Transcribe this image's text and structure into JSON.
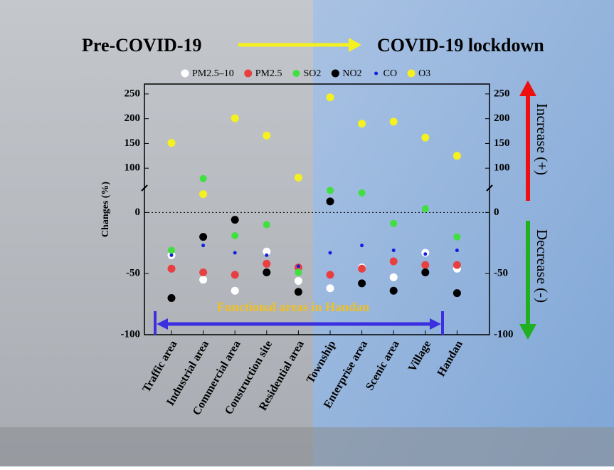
{
  "chart_data": {
    "type": "scatter",
    "annotations": {
      "left_title": "Pre-COVID-19",
      "right_title": "COVID-19 lockdown",
      "increase": "Increase (+)",
      "decrease": "Decrease (-)",
      "area_label": "Functional areas in Handan"
    },
    "y_label": "Changes (%)",
    "categories": [
      "Traffic area",
      "Industrial area",
      "Commercial area",
      "Construction site",
      "Residential area",
      "Township",
      "Enterprise area",
      "Scenic area",
      "Village",
      "Handan"
    ],
    "series": [
      {
        "name": "PM2.5–10",
        "color": "#ffffff",
        "size": 5.5,
        "values": [
          -35,
          -55,
          -64,
          -32,
          -56,
          -62,
          -45,
          -53,
          -33,
          -46
        ]
      },
      {
        "name": "PM2.5",
        "color": "#e84040",
        "size": 5.5,
        "values": [
          -46,
          -49,
          -51,
          -42,
          -45,
          -51,
          -46,
          -40,
          -43,
          -43
        ]
      },
      {
        "name": "SO2",
        "color": "#40e040",
        "size": 5,
        "values": [
          -31,
          79,
          -19,
          -10,
          -49,
          18,
          16,
          -9,
          3,
          -20
        ]
      },
      {
        "name": "NO2",
        "color": "#000000",
        "size": 5.5,
        "values": [
          -70,
          -20,
          -6,
          -49,
          -65,
          9,
          -58,
          -64,
          -49,
          -66
        ]
      },
      {
        "name": "CO",
        "color": "#1020e0",
        "size": 2.5,
        "values": [
          -35,
          -27,
          -33,
          -35,
          -44,
          -33,
          -27,
          -31,
          -34,
          -31
        ]
      },
      {
        "name": "O3",
        "color": "#f5f020",
        "size": 5.5,
        "values": [
          151,
          15,
          201,
          166,
          81,
          243,
          190,
          194,
          162,
          125
        ]
      }
    ],
    "ylim": [
      -100,
      270
    ],
    "ybreak": [
      20,
      60
    ],
    "yticks": [
      -100,
      -50,
      0,
      100,
      150,
      200,
      250
    ]
  }
}
